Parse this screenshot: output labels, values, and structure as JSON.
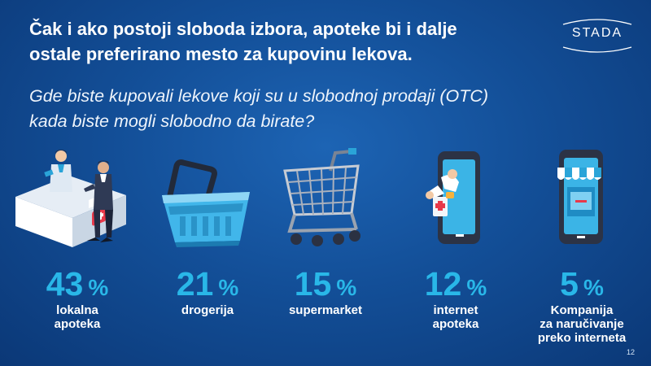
{
  "slide": {
    "headline": [
      "Čak i ako postoji sloboda izbora, apoteke bi i dalje",
      "ostale preferirano mesto za kupovinu lekova."
    ],
    "question": [
      "Gde biste kupovali lekove koji su u slobodnoj prodaji (OTC)",
      "kada biste mogli slobodno da birate?"
    ],
    "logo_text": "STADA",
    "page_number": "12"
  },
  "colors": {
    "accent": "#29b7e8",
    "background": "#134f98",
    "text": "#ffffff"
  },
  "chart_data": {
    "type": "bar",
    "unit": "%",
    "categories": [
      [
        "lokalna",
        "apoteka"
      ],
      [
        "drogerija"
      ],
      [
        "supermarket"
      ],
      [
        "internet",
        "apoteka"
      ],
      [
        "Kompanija",
        "za naručivanje",
        "preko interneta"
      ]
    ],
    "values": [
      43,
      21,
      15,
      12,
      5
    ],
    "icons": [
      "pharmacy-counter-icon",
      "shopping-basket-icon",
      "shopping-cart-icon",
      "online-pharmacy-phone-icon",
      "online-shop-phone-icon"
    ]
  }
}
